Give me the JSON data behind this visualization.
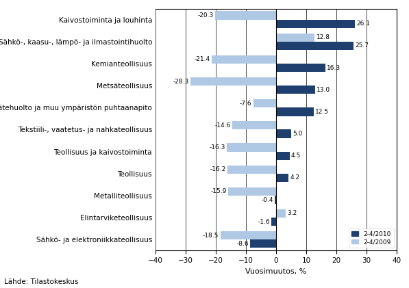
{
  "categories": [
    "Kaivostoiminta ja louhinta",
    "Sähkö-, kaasu-, lämpö- ja ilmastointihuolto",
    "Kemianteollisuus",
    "Metsäteollisuus",
    "Vesi- ja jätehuolto ja muu ympäristön puhtaanapito",
    "Tekstiili-, vaatetus- ja nahkateollisuus",
    "Teollisuus ja kaivostoiminta",
    "Teollisuus",
    "Metalliteollisuus",
    "Elintarviketeollisuus",
    "Sähkö- ja elektroniikkateollisuus"
  ],
  "values_2010": [
    26.1,
    25.7,
    16.3,
    13.0,
    12.5,
    5.0,
    4.5,
    4.2,
    -0.4,
    -1.6,
    -8.6
  ],
  "values_2009": [
    -20.3,
    12.8,
    -21.4,
    -28.3,
    -7.6,
    -14.6,
    -16.3,
    -16.2,
    -15.9,
    3.2,
    -18.5
  ],
  "color_2010": "#1F3F6E",
  "color_2009": "#AFC9E5",
  "xlabel": "Vuosimuutos, %",
  "xlim": [
    -40,
    40
  ],
  "xticks": [
    -40,
    -30,
    -20,
    -10,
    0,
    10,
    20,
    30,
    40
  ],
  "legend_2010": "2-4/2010",
  "legend_2009": "2-4/2009",
  "source": "Lähde: Tilastokeskus",
  "bar_height": 0.38,
  "figsize": [
    5.97,
    4.21
  ],
  "dpi": 100,
  "label_fontsize": 6.5,
  "tick_fontsize": 7.5,
  "ylabel_fontsize": 7.5,
  "xlabel_fontsize": 8.0
}
